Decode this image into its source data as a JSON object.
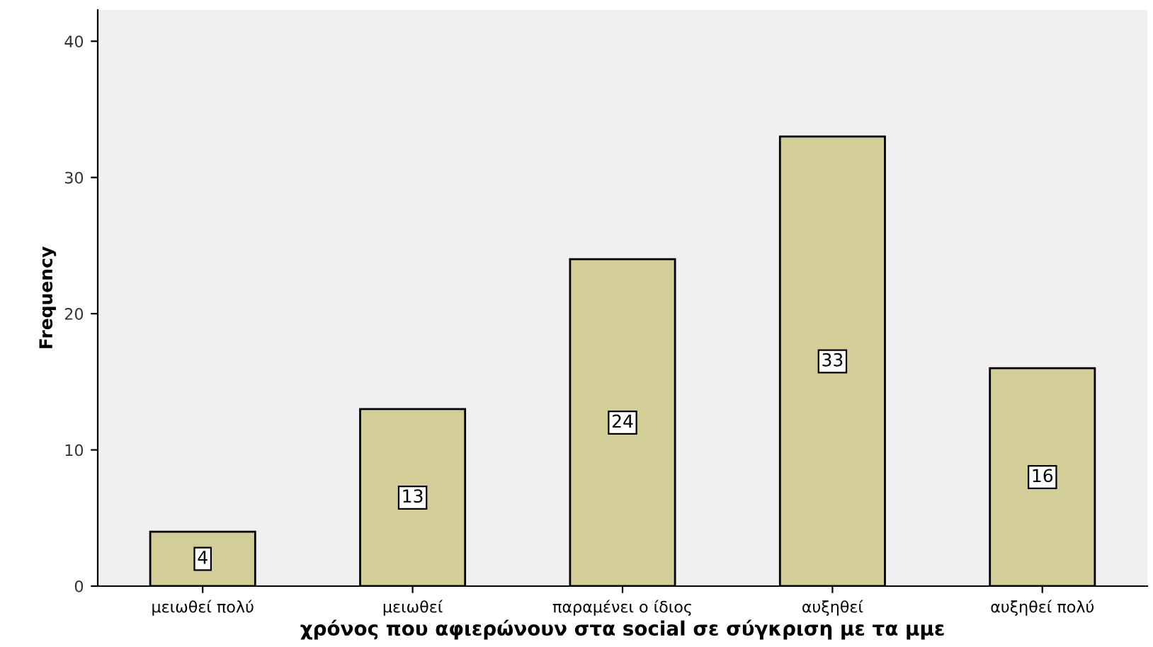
{
  "chart_data": {
    "type": "bar",
    "xlabel": "χρόνος που αφιερώνουν στα social σε σύγκριση με τα μμε",
    "ylabel": "Frequency",
    "categories": [
      "μειωθεί πολύ",
      "μειωθεί",
      "παραμένει ο ίδιος",
      "αυξηθεί",
      "αυξηθεί πολύ"
    ],
    "values": [
      4,
      13,
      24,
      33,
      16
    ],
    "color": "#d3ce98",
    "ylim": [
      0,
      42.3
    ],
    "yticks": [
      0,
      10,
      20,
      30,
      40
    ],
    "grid": false,
    "data_labels": true
  }
}
